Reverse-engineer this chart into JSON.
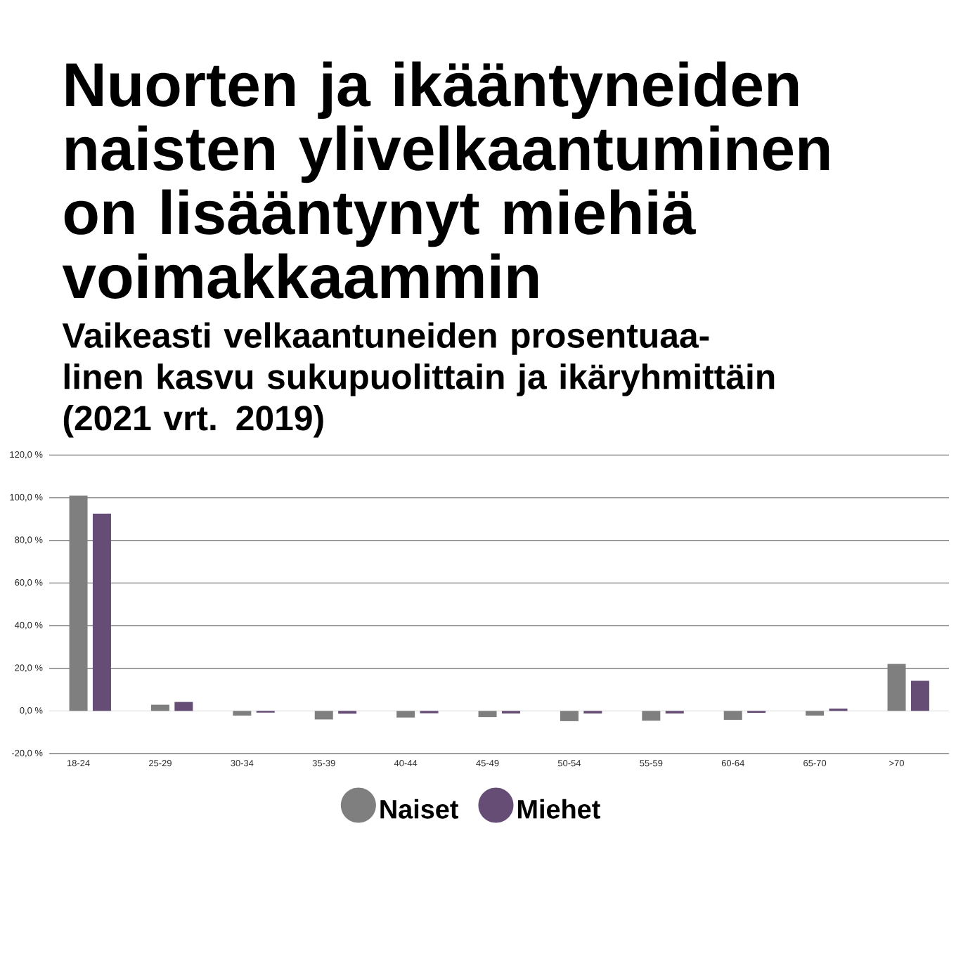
{
  "chart_data": {
    "type": "bar",
    "title": "Nuorten ja ikääntyneiden naisten ylivelkaantuminen on lisääntynyt miehiä voimakkaammin",
    "subtitle": "Vaikeasti velkaantuneiden prosentuaa-linen kasvu sukupuolittain ja ikäryhmittäin (2021 vrt. 2019)",
    "categories": [
      "18-24",
      "25-29",
      "30-34",
      "35-39",
      "40-44",
      "45-49",
      "50-54",
      "55-59",
      "60-64",
      "65-70",
      ">70"
    ],
    "series": [
      {
        "name": "Naiset",
        "color": "#7f7f7f",
        "values": [
          101,
          2.9,
          -2.2,
          -4.0,
          -3.1,
          -2.9,
          -4.8,
          -4.6,
          -4.2,
          -2.2,
          22.0
        ]
      },
      {
        "name": "Miehet",
        "color": "#654d75",
        "values": [
          92.5,
          4.2,
          -0.8,
          -1.3,
          -1.1,
          -1.2,
          -1.2,
          -1.2,
          -0.9,
          1.1,
          14.1
        ]
      }
    ],
    "ylim": [
      -20,
      120
    ],
    "yticks": [
      {
        "value": -20,
        "label": "-20,0 %"
      },
      {
        "value": 0,
        "label": "0,0 %"
      },
      {
        "value": 20,
        "label": "20,0 %"
      },
      {
        "value": 40,
        "label": "40,0 %"
      },
      {
        "value": 60,
        "label": "60,0 %"
      },
      {
        "value": 80,
        "label": "80,0 %"
      },
      {
        "value": 100,
        "label": "100,0 %"
      },
      {
        "value": 120,
        "label": "120,0 %"
      }
    ],
    "grid": "y",
    "legend": "bottom"
  }
}
